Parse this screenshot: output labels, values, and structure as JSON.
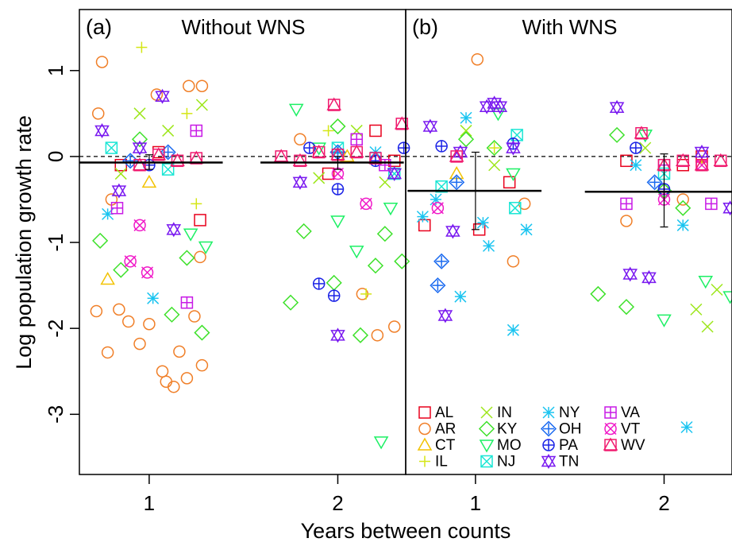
{
  "chart_data": {
    "type": "scatter",
    "ylabel": "Log population growth rate",
    "xlabel": "Years between counts",
    "ylim": [
      -3.7,
      1.71
    ],
    "yticks": [
      -3,
      -2,
      -1,
      0,
      1
    ],
    "xlim": [
      0.63,
      2.36
    ],
    "xticks": [
      1,
      2
    ],
    "reference_line": 0,
    "legend": "bottom-left",
    "panels": [
      {
        "label": "(a)",
        "title": "Without WNS",
        "legend": false,
        "means": [
          {
            "x": 1,
            "span": [
              0.63,
              1.39
            ],
            "mean": -0.07,
            "ci": [
              -0.15,
              0.02
            ]
          },
          {
            "x": 2,
            "span": [
              1.59,
              2.35
            ],
            "mean": -0.07,
            "ci": [
              -0.15,
              0.0
            ]
          }
        ]
      },
      {
        "label": "(b)",
        "title": "With WNS",
        "legend": true,
        "means": [
          {
            "x": 1,
            "span": [
              0.64,
              1.35
            ],
            "mean": -0.4,
            "ci": [
              -0.85,
              0.05
            ]
          },
          {
            "x": 2,
            "span": [
              1.58,
              2.36
            ],
            "mean": -0.41,
            "ci": [
              -0.82,
              0.03
            ]
          }
        ]
      }
    ],
    "series": [
      {
        "name": "AL",
        "color": "#e8001c",
        "marker": "square",
        "panels": [
          {
            "x": [
              0.85,
              1.05,
              1.27,
              1.95,
              2.2,
              2.3
            ],
            "y": [
              -0.1,
              0.05,
              -0.74,
              -0.2,
              0.3,
              -0.05
            ]
          },
          {
            "x": [
              0.73,
              1.02,
              1.18,
              1.8,
              2.1,
              2.2
            ],
            "y": [
              -0.8,
              -0.85,
              -0.3,
              -0.05,
              -0.1,
              0
            ]
          }
        ]
      },
      {
        "name": "AR",
        "color": "#f07f28",
        "marker": "circle",
        "panels": [
          {
            "x": [
              0.75,
              0.73,
              0.72,
              0.78,
              0.84,
              0.89,
              0.95,
              1.0,
              1.04,
              1.07,
              1.09,
              1.13,
              1.16,
              1.2,
              1.28,
              1.24,
              1.21,
              1.28,
              1.27,
              0.8,
              2.21,
              2.3,
              2.13,
              1.8
            ],
            "y": [
              1.1,
              0.5,
              -1.8,
              -2.28,
              -1.78,
              -1.92,
              -2.18,
              -1.95,
              0.72,
              -2.5,
              -2.62,
              -2.68,
              -2.27,
              -2.58,
              -2.43,
              -1.86,
              0.82,
              0.82,
              -1.17,
              -0.5,
              -2.08,
              -1.98,
              -1.6,
              0.2
            ]
          },
          {
            "x": [
              1.01,
              1.2,
              1.26,
              1.8,
              2.1
            ],
            "y": [
              1.13,
              -1.22,
              -0.55,
              -0.75,
              -0.5
            ]
          }
        ]
      },
      {
        "name": "CT",
        "color": "#f2c200",
        "marker": "triangle",
        "panels": [
          {
            "x": [
              0.78,
              1.0,
              2.05
            ],
            "y": [
              -1.43,
              -0.3,
              0
            ]
          },
          {
            "x": [
              0.9,
              2.0
            ],
            "y": [
              -0.2,
              -0.1
            ]
          }
        ]
      },
      {
        "name": "IL",
        "color": "#d4e615",
        "marker": "plus",
        "panels": [
          {
            "x": [
              0.96,
              1.25,
              1.2,
              2.15,
              1.95
            ],
            "y": [
              1.27,
              -0.55,
              0.5,
              -1.6,
              0.3
            ]
          },
          {
            "x": [
              1.1,
              2.2
            ],
            "y": [
              0.1,
              -0.05
            ]
          }
        ]
      },
      {
        "name": "IN",
        "color": "#9de61a",
        "marker": "x",
        "panels": [
          {
            "x": [
              0.95,
              1.28,
              0.85,
              1.1,
              2.1,
              1.9,
              2.25
            ],
            "y": [
              0.5,
              0.6,
              -0.2,
              0.3,
              0.3,
              -0.25,
              -0.3
            ]
          },
          {
            "x": [
              0.95,
              1.1,
              2.17,
              2.23,
              2.28,
              1.9
            ],
            "y": [
              0.3,
              -0.1,
              -1.78,
              -1.98,
              -1.55,
              0.1
            ]
          }
        ]
      },
      {
        "name": "KY",
        "color": "#3de12a",
        "marker": "diamond",
        "panels": [
          {
            "x": [
              0.74,
              0.85,
              1.12,
              1.2,
              1.28,
              0.95,
              1.75,
              1.82,
              1.98,
              2.12,
              2.2,
              2.25,
              2.34,
              2.0
            ],
            "y": [
              -0.98,
              -1.32,
              -1.84,
              -1.18,
              -2.05,
              0.2,
              -1.7,
              -0.87,
              -1.47,
              -2.08,
              -1.27,
              -0.9,
              -1.22,
              0.35
            ]
          },
          {
            "x": [
              0.95,
              1.1,
              1.65,
              1.8,
              1.75,
              2.0,
              2.1
            ],
            "y": [
              0.2,
              0.1,
              -1.6,
              -1.75,
              0.25,
              -0.4,
              -0.6
            ]
          }
        ]
      },
      {
        "name": "MO",
        "color": "#1cf064",
        "marker": "down-triangle",
        "panels": [
          {
            "x": [
              1.22,
              1.3,
              1.78,
              2.0,
              2.1,
              2.23,
              1.9,
              2.28
            ],
            "y": [
              -0.9,
              -1.05,
              0.55,
              -0.75,
              -1.1,
              -3.32,
              0.1,
              -0.6
            ]
          },
          {
            "x": [
              1.12,
              1.2,
              2.0,
              2.22,
              2.35,
              1.9
            ],
            "y": [
              0.5,
              -0.2,
              -1.9,
              -1.45,
              -1.63,
              0.25
            ]
          }
        ]
      },
      {
        "name": "NJ",
        "color": "#1ae6d4",
        "marker": "square-x",
        "panels": [
          {
            "x": [
              0.8,
              1.1,
              2.0,
              2.3
            ],
            "y": [
              0.1,
              -0.15,
              0.1,
              -0.2
            ]
          },
          {
            "x": [
              0.82,
              1.21,
              1.22,
              2.0
            ],
            "y": [
              -0.35,
              -0.6,
              0.25,
              -0.2
            ]
          }
        ]
      },
      {
        "name": "NY",
        "color": "#1ac4f0",
        "marker": "asterisk",
        "panels": [
          {
            "x": [
              0.78,
              1.02,
              2.2
            ],
            "y": [
              -0.67,
              -1.65,
              0.05
            ]
          },
          {
            "x": [
              0.72,
              0.79,
              0.95,
              0.92,
              1.04,
              1.07,
              1.2,
              1.27,
              1.85,
              2.1,
              2.12
            ],
            "y": [
              -0.7,
              -0.5,
              0.45,
              -1.63,
              -0.77,
              -1.04,
              -2.02,
              -0.85,
              -0.1,
              -0.8,
              -3.15
            ]
          }
        ]
      },
      {
        "name": "OH",
        "color": "#1a6af0",
        "marker": "diamond-plus",
        "panels": [
          {
            "x": [
              0.9,
              1.1,
              2.0
            ],
            "y": [
              -0.05,
              0.05,
              0.05
            ]
          },
          {
            "x": [
              0.82,
              0.8,
              0.9,
              1.95
            ],
            "y": [
              -1.22,
              -1.5,
              -0.3,
              -0.3
            ]
          }
        ]
      },
      {
        "name": "PA",
        "color": "#1a22e6",
        "marker": "circle-plus",
        "panels": [
          {
            "x": [
              1.0,
              1.85,
              1.9,
              1.98,
              2.0,
              2.2,
              2.35
            ],
            "y": [
              -0.1,
              0.1,
              -1.48,
              -1.62,
              -0.38,
              -0.05,
              0.1
            ]
          },
          {
            "x": [
              0.82,
              1.2,
              2.0,
              1.85
            ],
            "y": [
              0.12,
              0.15,
              -0.38,
              0.1
            ]
          }
        ]
      },
      {
        "name": "TN",
        "color": "#7a1af0",
        "marker": "star",
        "panels": [
          {
            "x": [
              0.75,
              0.84,
              1.07,
              1.13,
              0.95,
              2.0,
              2.3,
              1.8
            ],
            "y": [
              0.3,
              -0.4,
              0.7,
              -0.85,
              0.1,
              -2.08,
              -0.2,
              -0.3
            ]
          },
          {
            "x": [
              0.76,
              0.84,
              0.88,
              1.06,
              1.1,
              1.13,
              0.92,
              1.2,
              1.75,
              1.82,
              1.92,
              2.35,
              2.2
            ],
            "y": [
              0.35,
              -1.85,
              -0.87,
              0.58,
              0.62,
              0.58,
              0.05,
              0.1,
              0.57,
              -1.37,
              -1.41,
              -0.6,
              0.05
            ]
          }
        ]
      },
      {
        "name": "VA",
        "color": "#c81ae6",
        "marker": "square-plus",
        "panels": [
          {
            "x": [
              0.83,
              1.2,
              1.25,
              2.1,
              2.25
            ],
            "y": [
              -0.6,
              -1.7,
              0.3,
              0.2,
              -0.1
            ]
          },
          {
            "x": [
              1.8,
              2.25,
              2.0
            ],
            "y": [
              -0.55,
              -0.55,
              -0.1
            ]
          }
        ]
      },
      {
        "name": "VT",
        "color": "#f01ac8",
        "marker": "circle-x",
        "panels": [
          {
            "x": [
              0.9,
              0.99,
              0.95,
              2.15,
              2.0
            ],
            "y": [
              -1.22,
              -1.35,
              -0.8,
              -0.55,
              -0.2
            ]
          },
          {
            "x": [
              0.8,
              2.0,
              2.2
            ],
            "y": [
              -0.6,
              -0.5,
              -0.1
            ]
          }
        ]
      },
      {
        "name": "WV",
        "color": "#f01a6e",
        "marker": "square-triangle",
        "panels": [
          {
            "x": [
              0.95,
              1.05,
              1.15,
              1.25,
              1.8,
              1.9,
              2.0,
              2.1,
              2.2,
              1.98,
              2.34,
              1.7
            ],
            "y": [
              -0.1,
              0.02,
              -0.05,
              -0.02,
              -0.05,
              0.05,
              0.02,
              0.05,
              -0.02,
              0.6,
              0.38,
              0.0
            ]
          },
          {
            "x": [
              1.88,
              2.0,
              2.1,
              2.2,
              2.3,
              0.9
            ],
            "y": [
              0.27,
              -0.1,
              -0.05,
              -0.1,
              -0.05,
              0.0
            ]
          }
        ]
      }
    ]
  }
}
